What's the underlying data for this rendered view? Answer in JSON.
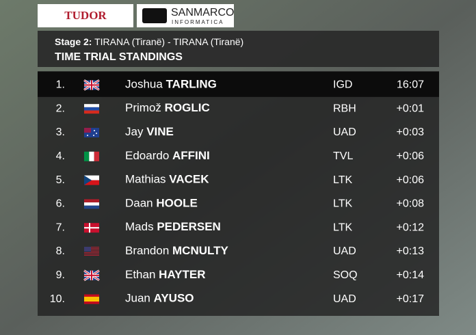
{
  "sponsors": [
    {
      "name": "TUDOR"
    },
    {
      "name": "SANMARCO",
      "sub": "INFORMATICA"
    }
  ],
  "header": {
    "stage_label": "Stage 2:",
    "route": "TIRANA (Tiranë) - TIRANA (Tiranë)",
    "title": "TIME TRIAL STANDINGS"
  },
  "table": {
    "rows": [
      {
        "rank": "1.",
        "first": "Joshua",
        "last": "TARLING",
        "team": "IGD",
        "time": "16:07"
      },
      {
        "rank": "2.",
        "first": "Primož",
        "last": "ROGLIC",
        "team": "RBH",
        "time": "+0:01"
      },
      {
        "rank": "3.",
        "first": "Jay",
        "last": "VINE",
        "team": "UAD",
        "time": "+0:03"
      },
      {
        "rank": "4.",
        "first": "Edoardo",
        "last": "AFFINI",
        "team": "TVL",
        "time": "+0:06"
      },
      {
        "rank": "5.",
        "first": "Mathias",
        "last": "VACEK",
        "team": "LTK",
        "time": "+0:06"
      },
      {
        "rank": "6.",
        "first": "Daan",
        "last": "HOOLE",
        "team": "LTK",
        "time": "+0:08"
      },
      {
        "rank": "7.",
        "first": "Mads",
        "last": "PEDERSEN",
        "team": "LTK",
        "time": "+0:12"
      },
      {
        "rank": "8.",
        "first": "Brandon",
        "last": "MCNULTY",
        "team": "UAD",
        "time": "+0:13"
      },
      {
        "rank": "9.",
        "first": "Ethan",
        "last": "HAYTER",
        "team": "SOQ",
        "time": "+0:14"
      },
      {
        "rank": "10.",
        "first": "Juan",
        "last": "AYUSO",
        "team": "UAD",
        "time": "+0:17"
      }
    ]
  }
}
